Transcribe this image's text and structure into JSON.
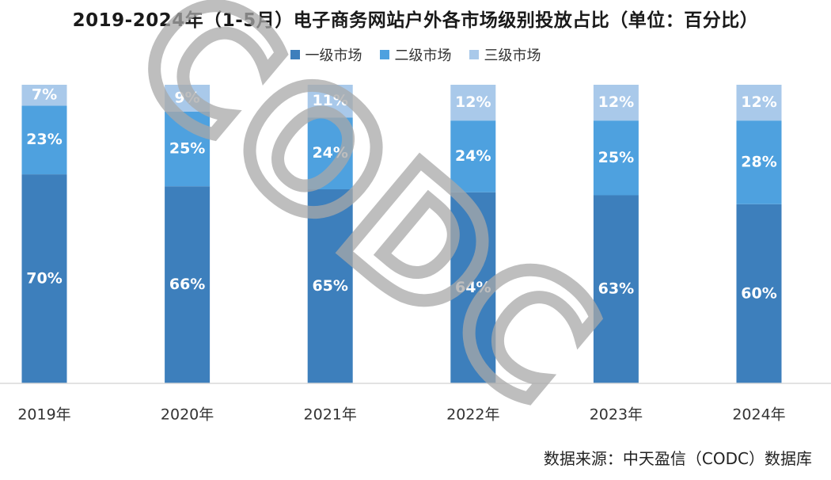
{
  "chart_data": {
    "type": "bar",
    "stacked": true,
    "title": "2019-2024年（1-5月）电子商务网站户外各市场级别投放占比（单位：百分比）",
    "categories": [
      "2019年",
      "2020年",
      "2021年",
      "2022年",
      "2023年",
      "2024年"
    ],
    "series": [
      {
        "name": "一级市场",
        "values": [
          70,
          66,
          65,
          64,
          63,
          60
        ],
        "color": "#3d7fbc"
      },
      {
        "name": "二级市场",
        "values": [
          23,
          25,
          24,
          24,
          25,
          28
        ],
        "color": "#4ea1df"
      },
      {
        "name": "三级市场",
        "values": [
          7,
          9,
          11,
          12,
          12,
          12
        ],
        "color": "#a9c9ea"
      }
    ],
    "value_suffix": "%",
    "ylim": [
      0,
      100
    ],
    "legend_position": "top",
    "grid": false
  },
  "watermark": "CODC",
  "source": "数据来源：中天盈信（CODC）数据库"
}
